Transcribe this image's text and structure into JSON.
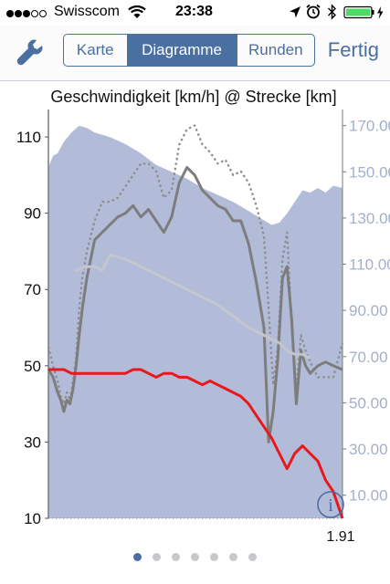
{
  "status_bar": {
    "signal_icon": "signal-dots-icon",
    "carrier": "Swisscom",
    "wifi_icon": "wifi-icon",
    "time": "23:38",
    "location_icon": "location-arrow-icon",
    "alarm_icon": "alarm-clock-icon",
    "bluetooth_icon": "bluetooth-icon",
    "battery_icon": "battery-icon",
    "battery_color": "#4cd964"
  },
  "navbar": {
    "settings_icon": "wrench-icon",
    "tabs": [
      {
        "label": "Karte",
        "active": false
      },
      {
        "label": "Diagramme",
        "active": true
      },
      {
        "label": "Runden",
        "active": false
      }
    ],
    "done_label": "Fertig",
    "accent_color": "#4a6fa1"
  },
  "chart_data": {
    "type": "line",
    "title": "Geschwindigkeit [km/h] @ Strecke [km]",
    "xlabel": "",
    "x_end_label": "1.91",
    "xlim": [
      0,
      1.91
    ],
    "ylim_left": [
      10,
      116
    ],
    "ylim_right": [
      0,
      175
    ],
    "left_ticks": [
      "110",
      "90",
      "70",
      "50",
      "30",
      "10"
    ],
    "left_tick_values": [
      110,
      90,
      70,
      50,
      30,
      10
    ],
    "right_ticks": [
      "170.00",
      "150.00",
      "130.00",
      "110.00",
      "90.00",
      "70.00",
      "50.00",
      "30.00",
      "10.00"
    ],
    "right_tick_values": [
      170,
      150,
      130,
      110,
      90,
      70,
      50,
      30,
      10
    ],
    "grid": false,
    "legend": "none",
    "info_icon": "info-icon",
    "series": [
      {
        "axis": "right",
        "style": "area",
        "color": "#b2bcd8",
        "x": [
          0,
          0.03,
          0.06,
          0.1,
          0.15,
          0.2,
          0.25,
          0.3,
          0.4,
          0.5,
          0.6,
          0.7,
          0.8,
          0.9,
          1.0,
          1.1,
          1.2,
          1.3,
          1.4,
          1.45,
          1.5,
          1.55,
          1.6,
          1.65,
          1.7,
          1.75,
          1.8,
          1.85,
          1.91
        ],
        "y": [
          152,
          157,
          158,
          163,
          167,
          170,
          169,
          167,
          165,
          162,
          158,
          153,
          150,
          147,
          143,
          140,
          137,
          133,
          129,
          127,
          128,
          132,
          137,
          142,
          141,
          143,
          141,
          144,
          143
        ]
      },
      {
        "axis": "left",
        "style": "dotted",
        "color": "#8c8c8c",
        "x": [
          0,
          0.03,
          0.06,
          0.08,
          0.1,
          0.12,
          0.14,
          0.16,
          0.18,
          0.2,
          0.22,
          0.25,
          0.3,
          0.35,
          0.4,
          0.45,
          0.5,
          0.55,
          0.6,
          0.65,
          0.7,
          0.75,
          0.8,
          0.85,
          0.9,
          0.95,
          1.0,
          1.05,
          1.1,
          1.15,
          1.2,
          1.25,
          1.3,
          1.35,
          1.4,
          1.43,
          1.46,
          1.49,
          1.52,
          1.55,
          1.58,
          1.61,
          1.64,
          1.67,
          1.7,
          1.75,
          1.8,
          1.85,
          1.91
        ],
        "y": [
          55,
          50,
          46,
          42,
          40,
          43,
          41,
          46,
          52,
          65,
          73,
          80,
          88,
          93,
          93,
          94,
          97,
          100,
          103,
          103,
          101,
          94,
          96,
          108,
          112,
          113,
          108,
          106,
          103,
          104,
          100,
          101,
          98,
          92,
          84,
          65,
          45,
          55,
          78,
          85,
          60,
          44,
          58,
          54,
          51,
          47,
          47,
          47,
          56
        ]
      },
      {
        "axis": "left",
        "style": "solid",
        "color": "#7d7d7d",
        "x": [
          0,
          0.03,
          0.06,
          0.08,
          0.1,
          0.12,
          0.14,
          0.16,
          0.18,
          0.2,
          0.22,
          0.25,
          0.3,
          0.35,
          0.4,
          0.45,
          0.5,
          0.55,
          0.6,
          0.65,
          0.7,
          0.75,
          0.8,
          0.85,
          0.9,
          0.95,
          1.0,
          1.05,
          1.1,
          1.15,
          1.2,
          1.25,
          1.3,
          1.35,
          1.4,
          1.43,
          1.46,
          1.49,
          1.52,
          1.55,
          1.58,
          1.61,
          1.64,
          1.67,
          1.7,
          1.75,
          1.8,
          1.85,
          1.91
        ],
        "y": [
          49,
          47,
          43,
          41,
          38,
          41,
          40,
          44,
          50,
          58,
          65,
          73,
          83,
          85,
          87,
          89,
          90,
          92,
          89,
          91,
          88,
          85,
          89,
          98,
          102,
          100,
          96,
          94,
          92,
          91,
          88,
          88,
          82,
          72,
          60,
          30,
          38,
          52,
          73,
          76,
          62,
          40,
          54,
          50,
          48,
          50,
          51,
          50,
          49
        ]
      },
      {
        "axis": "left",
        "style": "solid",
        "color": "#c3c6cd",
        "x": [
          0.17,
          0.25,
          0.3,
          0.35,
          0.4,
          0.5,
          0.6,
          0.7,
          0.8,
          0.9,
          1.0,
          1.1,
          1.2,
          1.3,
          1.4,
          1.5,
          1.55,
          1.6,
          1.65,
          1.7
        ],
        "y": [
          75,
          76,
          76,
          75,
          79,
          78,
          76,
          74,
          72,
          70,
          68,
          66,
          63,
          60,
          58,
          56,
          54,
          53,
          53,
          52
        ]
      },
      {
        "axis": "left",
        "style": "solid",
        "color": "#e8181b",
        "x": [
          0,
          0.05,
          0.1,
          0.15,
          0.2,
          0.25,
          0.3,
          0.35,
          0.4,
          0.45,
          0.5,
          0.55,
          0.6,
          0.65,
          0.7,
          0.75,
          0.8,
          0.85,
          0.9,
          0.95,
          1.0,
          1.05,
          1.1,
          1.15,
          1.2,
          1.25,
          1.3,
          1.35,
          1.4,
          1.45,
          1.5,
          1.55,
          1.6,
          1.65,
          1.7,
          1.75,
          1.8,
          1.85,
          1.91
        ],
        "y": [
          49,
          49,
          49,
          48,
          48,
          48,
          48,
          48,
          48,
          48,
          48,
          49,
          49,
          48,
          47,
          48,
          48,
          47,
          47,
          46,
          45,
          46,
          45,
          44,
          43,
          42,
          40,
          37,
          34,
          31,
          27,
          23,
          27,
          29,
          27,
          25,
          20,
          17,
          10
        ]
      }
    ]
  },
  "page_indicator": {
    "count": 7,
    "active_index": 0
  }
}
